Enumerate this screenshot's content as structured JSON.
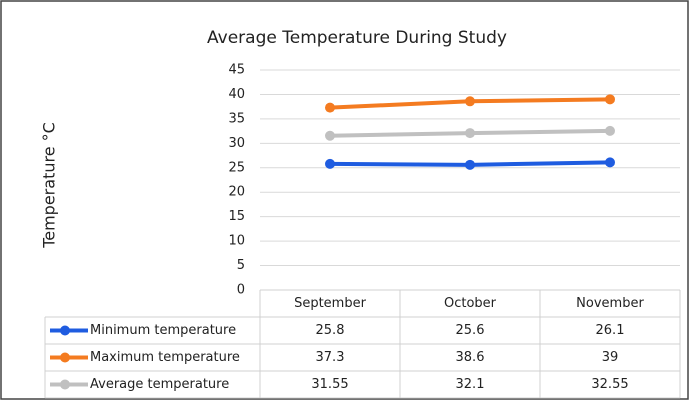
{
  "chart_data": {
    "type": "line",
    "title": "Average Temperature During Study",
    "y_label": "Temperature °C",
    "categories": [
      "September",
      "October",
      "November"
    ],
    "series": [
      {
        "name": "Minimum temperature",
        "color": "#1f5ce0",
        "values": [
          25.8,
          25.6,
          26.1
        ]
      },
      {
        "name": "Maximum temperature",
        "color": "#f47b20",
        "values": [
          37.3,
          38.6,
          39
        ]
      },
      {
        "name": "Average temperature",
        "color": "#c0c0c0",
        "values": [
          31.55,
          32.1,
          32.55
        ]
      }
    ],
    "ylim": [
      0,
      45
    ],
    "yticks": [
      0,
      5,
      10,
      15,
      20,
      25,
      30,
      35,
      40,
      45
    ],
    "grid": true,
    "data_table": true
  }
}
